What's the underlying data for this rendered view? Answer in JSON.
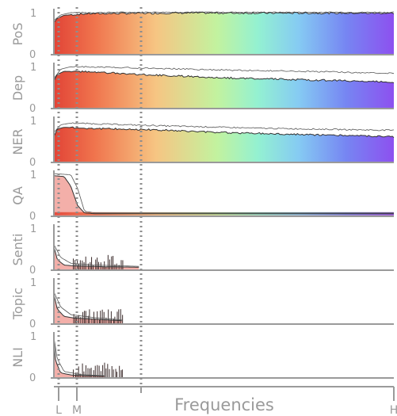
{
  "chart_data": {
    "type": "area",
    "xlabel": "Frequencies",
    "x_ticks": [
      "L",
      "M",
      "H"
    ],
    "ylim": [
      0,
      1
    ],
    "y_ticks": [
      "0",
      "1"
    ],
    "reference_lines": [
      "L",
      "M"
    ],
    "panels": [
      {
        "name": "PoS",
        "filled": true,
        "mean": [
          [
            0,
            0.75
          ],
          [
            0.01,
            0.85
          ],
          [
            0.03,
            0.92
          ],
          [
            0.1,
            0.96
          ],
          [
            0.4,
            0.975
          ],
          [
            1,
            0.97
          ]
        ],
        "upper": [
          [
            0,
            0.8
          ],
          [
            0.02,
            0.93
          ],
          [
            0.05,
            0.98
          ],
          [
            0.3,
            0.995
          ],
          [
            1,
            0.99
          ]
        ]
      },
      {
        "name": "Dep",
        "filled": true,
        "mean": [
          [
            0,
            0.65
          ],
          [
            0.01,
            0.8
          ],
          [
            0.03,
            0.87
          ],
          [
            0.1,
            0.86
          ],
          [
            0.3,
            0.78
          ],
          [
            0.5,
            0.72
          ],
          [
            0.7,
            0.68
          ],
          [
            1,
            0.62
          ]
        ],
        "upper": [
          [
            0,
            0.7
          ],
          [
            0.02,
            0.92
          ],
          [
            0.05,
            0.98
          ],
          [
            0.2,
            0.96
          ],
          [
            0.5,
            0.9
          ],
          [
            0.8,
            0.86
          ],
          [
            1,
            0.82
          ]
        ]
      },
      {
        "name": "NER",
        "filled": true,
        "mean": [
          [
            0,
            0.6
          ],
          [
            0.01,
            0.78
          ],
          [
            0.03,
            0.82
          ],
          [
            0.1,
            0.8
          ],
          [
            0.3,
            0.76
          ],
          [
            0.5,
            0.7
          ],
          [
            0.7,
            0.66
          ],
          [
            1,
            0.6
          ]
        ],
        "upper": [
          [
            0,
            0.7
          ],
          [
            0.02,
            0.88
          ],
          [
            0.05,
            0.92
          ],
          [
            0.3,
            0.86
          ],
          [
            0.6,
            0.8
          ],
          [
            1,
            0.75
          ]
        ]
      },
      {
        "name": "QA",
        "filled": false,
        "mean": [
          [
            0,
            0.95
          ],
          [
            0.03,
            0.93
          ],
          [
            0.05,
            0.7
          ],
          [
            0.07,
            0.25
          ],
          [
            0.09,
            0.08
          ],
          [
            0.12,
            0.06
          ],
          [
            1,
            0.06
          ]
        ],
        "upper": [
          [
            0,
            1
          ],
          [
            0.05,
            0.97
          ],
          [
            0.07,
            0.65
          ],
          [
            0.09,
            0.12
          ],
          [
            0.12,
            0.08
          ],
          [
            1,
            0.08
          ]
        ]
      },
      {
        "name": "Senti",
        "filled": false,
        "mean": [
          [
            0,
            0.55
          ],
          [
            0.01,
            0.25
          ],
          [
            0.03,
            0.12
          ],
          [
            0.06,
            0.1
          ],
          [
            0.15,
            0.08
          ],
          [
            0.25,
            0.07
          ]
        ],
        "upper": [
          [
            0,
            0.6
          ],
          [
            0.02,
            0.3
          ],
          [
            0.05,
            0.16
          ],
          [
            0.12,
            0.12
          ],
          [
            0.25,
            0.09
          ]
        ]
      },
      {
        "name": "Topic",
        "filled": false,
        "mean": [
          [
            0,
            0.7
          ],
          [
            0.01,
            0.35
          ],
          [
            0.03,
            0.18
          ],
          [
            0.06,
            0.14
          ],
          [
            0.15,
            0.1
          ],
          [
            0.2,
            0.08
          ]
        ],
        "upper": [
          [
            0,
            0.75
          ],
          [
            0.02,
            0.4
          ],
          [
            0.05,
            0.22
          ],
          [
            0.12,
            0.15
          ],
          [
            0.2,
            0.1
          ]
        ]
      },
      {
        "name": "NLI",
        "filled": false,
        "mean": [
          [
            0,
            0.9
          ],
          [
            0.005,
            0.4
          ],
          [
            0.02,
            0.12
          ],
          [
            0.05,
            0.07
          ],
          [
            0.1,
            0.05
          ],
          [
            0.15,
            0.04
          ]
        ],
        "upper": [
          [
            0,
            0.95
          ],
          [
            0.01,
            0.45
          ],
          [
            0.03,
            0.15
          ],
          [
            0.08,
            0.08
          ],
          [
            0.15,
            0.05
          ]
        ]
      }
    ]
  }
}
